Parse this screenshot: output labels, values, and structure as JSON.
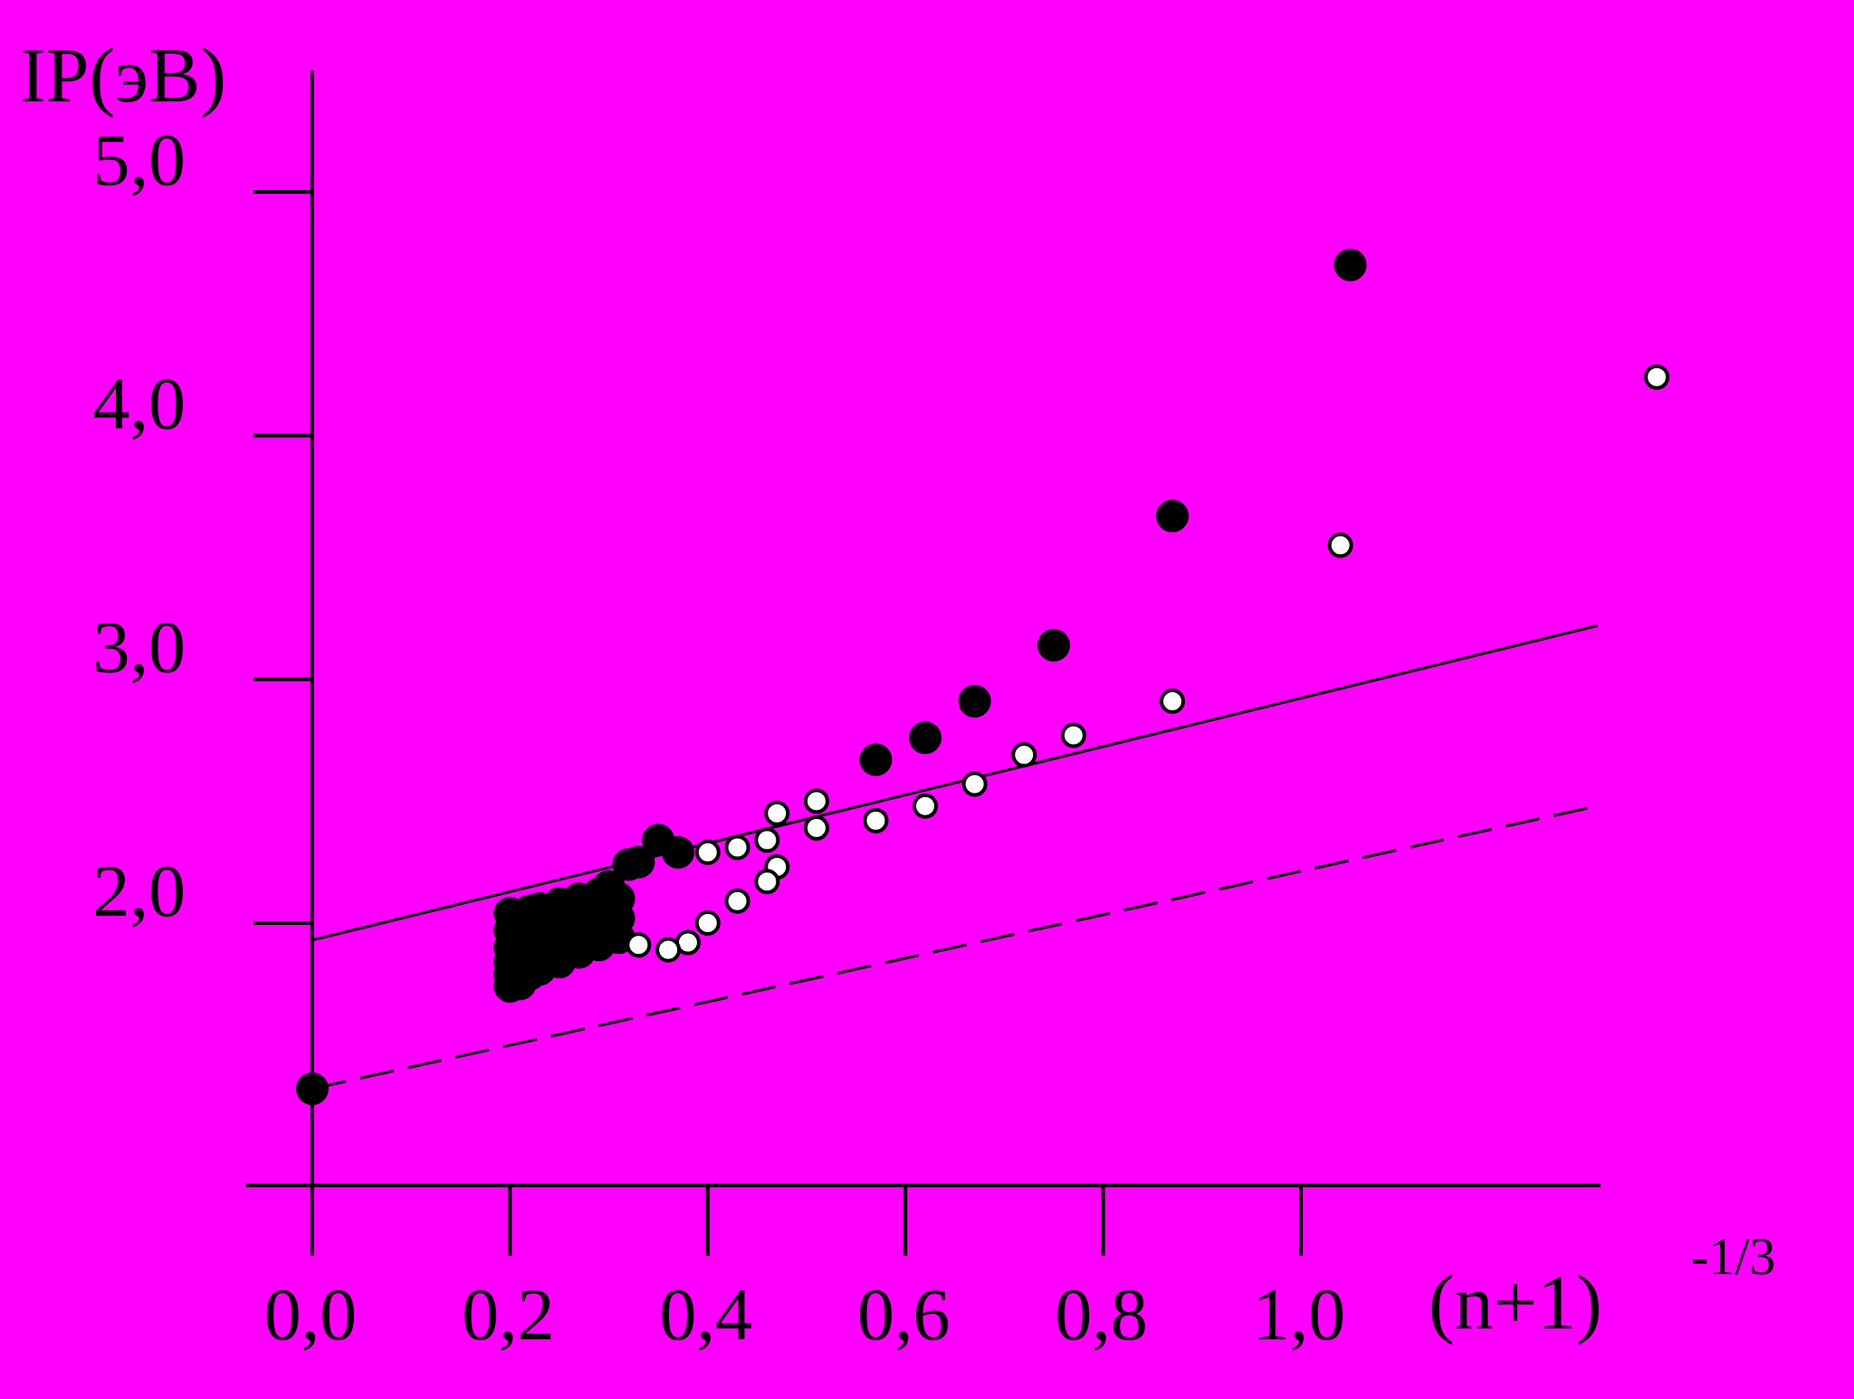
{
  "chart_data": {
    "type": "scatter",
    "ylabel": "IP(эВ)",
    "xlabel": {
      "base": "(n+1)",
      "exponent": "-1/3"
    },
    "background_color": "#ff00ff",
    "grid": false,
    "xlim": [
      0.0,
      1.3
    ],
    "ylim": [
      1.0,
      5.5
    ],
    "x_ticks": [
      0.0,
      0.2,
      0.4,
      0.6,
      0.8,
      1.0
    ],
    "x_tick_labels": [
      "0,0",
      "0,2",
      "0,4",
      "0,6",
      "0,8",
      "1,0"
    ],
    "y_ticks": [
      2.0,
      3.0,
      4.0,
      5.0
    ],
    "y_tick_labels": [
      "2,0",
      "3,0",
      "4,0",
      "5,0"
    ],
    "series": [
      {
        "marker": "filled-circle",
        "color": "#000000",
        "points": [
          [
            0.0,
            1.32
          ],
          [
            1.05,
            4.7
          ],
          [
            0.87,
            3.67
          ],
          [
            0.75,
            3.14
          ],
          [
            0.67,
            2.91
          ],
          [
            0.62,
            2.76
          ],
          [
            0.57,
            2.67
          ],
          [
            0.35,
            2.34
          ],
          [
            0.37,
            2.29
          ],
          [
            0.33,
            2.25
          ],
          [
            0.32,
            2.24
          ],
          [
            0.3,
            2.15
          ],
          [
            0.31,
            2.1
          ],
          [
            0.31,
            2.02
          ],
          [
            0.31,
            1.94
          ],
          [
            0.29,
            2.12
          ],
          [
            0.28,
            2.06
          ],
          [
            0.29,
            1.99
          ],
          [
            0.29,
            1.91
          ],
          [
            0.27,
            2.1
          ],
          [
            0.26,
            2.04
          ],
          [
            0.27,
            1.97
          ],
          [
            0.27,
            1.88
          ],
          [
            0.25,
            2.08
          ],
          [
            0.25,
            2.02
          ],
          [
            0.25,
            1.95
          ],
          [
            0.26,
            1.89
          ],
          [
            0.25,
            1.84
          ],
          [
            0.23,
            2.06
          ],
          [
            0.24,
            1.99
          ],
          [
            0.23,
            1.92
          ],
          [
            0.24,
            1.85
          ],
          [
            0.23,
            1.81
          ],
          [
            0.22,
            2.05
          ],
          [
            0.21,
            1.98
          ],
          [
            0.21,
            1.92
          ],
          [
            0.22,
            1.86
          ],
          [
            0.22,
            1.79
          ],
          [
            0.21,
            1.75
          ],
          [
            0.2,
            2.04
          ],
          [
            0.2,
            1.97
          ],
          [
            0.2,
            1.9
          ],
          [
            0.2,
            1.84
          ],
          [
            0.2,
            1.79
          ],
          [
            0.2,
            1.74
          ]
        ]
      },
      {
        "marker": "open-circle",
        "color": "#ffffff",
        "points": [
          [
            1.36,
            4.24
          ],
          [
            1.04,
            3.55
          ],
          [
            0.87,
            2.91
          ],
          [
            0.77,
            2.77
          ],
          [
            0.72,
            2.69
          ],
          [
            0.67,
            2.57
          ],
          [
            0.62,
            2.48
          ],
          [
            0.57,
            2.42
          ],
          [
            0.51,
            2.5
          ],
          [
            0.51,
            2.39
          ],
          [
            0.47,
            2.45
          ],
          [
            0.46,
            2.34
          ],
          [
            0.43,
            2.31
          ],
          [
            0.4,
            2.29
          ],
          [
            0.47,
            2.23
          ],
          [
            0.46,
            2.17
          ],
          [
            0.43,
            2.09
          ],
          [
            0.4,
            2.0
          ],
          [
            0.38,
            1.92
          ],
          [
            0.36,
            1.89
          ],
          [
            0.33,
            1.91
          ]
        ]
      }
    ],
    "lines": [
      {
        "style": "solid",
        "x": [
          0.0,
          1.3
        ],
        "y": [
          1.93,
          3.22
        ]
      },
      {
        "style": "dashed",
        "x": [
          0.0,
          1.3
        ],
        "y": [
          1.32,
          2.48
        ]
      }
    ]
  }
}
